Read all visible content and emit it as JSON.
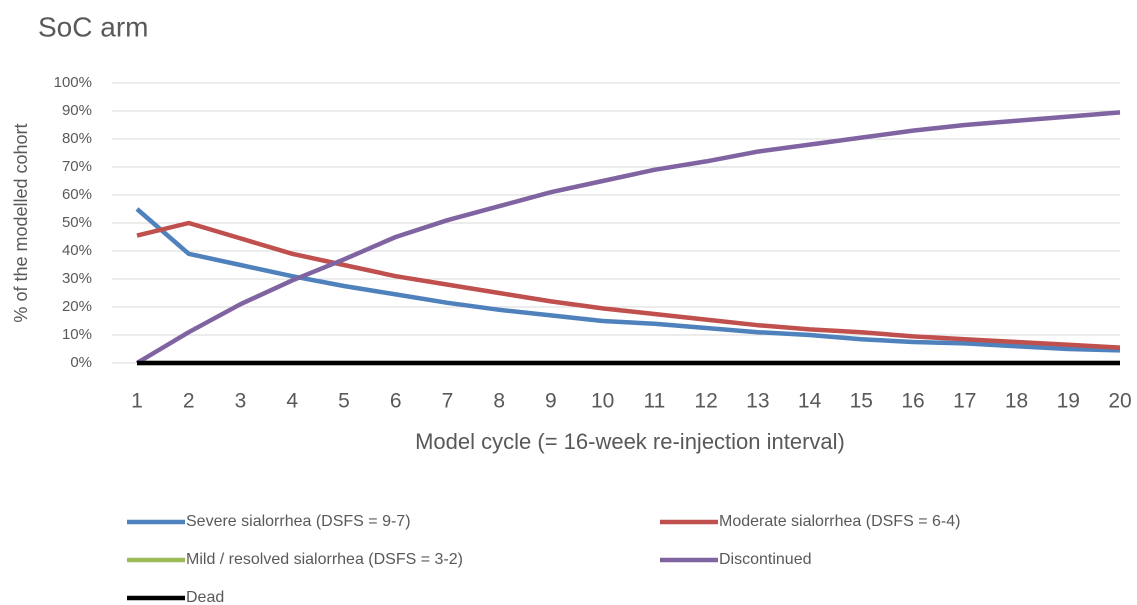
{
  "chart_data": {
    "type": "line",
    "title": "SoC arm",
    "x_label": "Model cycle (= 16-week re-injection interval)",
    "y_label": "% of the modelled cohort",
    "x": [
      1,
      2,
      3,
      4,
      5,
      6,
      7,
      8,
      9,
      10,
      11,
      12,
      13,
      14,
      15,
      16,
      17,
      18,
      19,
      20
    ],
    "xlim": [
      1,
      20
    ],
    "ylim": [
      0,
      100
    ],
    "yticks": [
      {
        "value": 0,
        "label": "0%"
      },
      {
        "value": 10,
        "label": "10%"
      },
      {
        "value": 20,
        "label": "20%"
      },
      {
        "value": 30,
        "label": "30%"
      },
      {
        "value": 40,
        "label": "40%"
      },
      {
        "value": 50,
        "label": "50%"
      },
      {
        "value": 60,
        "label": "60%"
      },
      {
        "value": 70,
        "label": "70%"
      },
      {
        "value": 80,
        "label": "80%"
      },
      {
        "value": 90,
        "label": "90%"
      },
      {
        "value": 100,
        "label": "100%"
      }
    ],
    "grid": true,
    "legend": "bottom",
    "series": [
      {
        "name": "Severe sialorrhea (DSFS = 9-7)",
        "color": "#4f81bd",
        "values": [
          55,
          39,
          35,
          31,
          27.5,
          24.5,
          21.5,
          19,
          17,
          15,
          14,
          12.5,
          11,
          10,
          8.5,
          7.5,
          7,
          6,
          5,
          4.5
        ]
      },
      {
        "name": "Moderate sialorrhea (DSFS = 6-4)",
        "color": "#c0504d",
        "values": [
          45.5,
          50,
          44.5,
          39,
          35,
          31,
          28,
          25,
          22,
          19.5,
          17.5,
          15.5,
          13.5,
          12,
          11,
          9.5,
          8.5,
          7.5,
          6.5,
          5.5
        ]
      },
      {
        "name": "Mild / resolved sialorrhea (DSFS = 3-2)",
        "color": "#9bbb59",
        "values": [
          0,
          0,
          0,
          0,
          0,
          0,
          0,
          0,
          0,
          0,
          0,
          0,
          0,
          0,
          0,
          0,
          0,
          0,
          0,
          0
        ]
      },
      {
        "name": "Discontinued",
        "color": "#8064a2",
        "values": [
          0,
          11,
          21,
          29.5,
          37,
          45,
          51,
          56,
          61,
          65,
          69,
          72,
          75.5,
          78,
          80.5,
          83,
          85,
          86.5,
          88,
          89.5
        ]
      },
      {
        "name": "Dead",
        "color": "#000000",
        "values": [
          0,
          0,
          0,
          0,
          0,
          0,
          0,
          0,
          0,
          0,
          0,
          0,
          0,
          0,
          0,
          0,
          0,
          0,
          0,
          0
        ]
      }
    ]
  }
}
